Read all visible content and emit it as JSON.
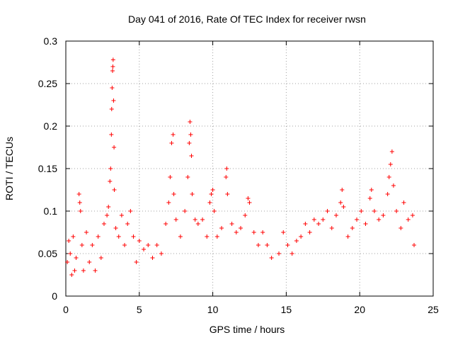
{
  "chart_data": {
    "type": "scatter",
    "title": "Day 041 of 2016, Rate Of TEC Index for receiver rwsn",
    "xlabel": "GPS time / hours",
    "ylabel": "ROTI / TECUs",
    "xlim": [
      0,
      25
    ],
    "ylim": [
      0,
      0.3
    ],
    "xticks": [
      0,
      5,
      10,
      15,
      20,
      25
    ],
    "xtick_labels": [
      "0",
      "5",
      "10",
      "15",
      "20",
      "25"
    ],
    "yticks": [
      0,
      0.05,
      0.1,
      0.15,
      0.2,
      0.25,
      0.3
    ],
    "ytick_labels": [
      "0",
      "0.05",
      "0.1",
      "0.15",
      "0.2",
      "0.25",
      "0.3"
    ],
    "grid": true,
    "marker": "+",
    "series_color": "#ff0000",
    "series": [
      {
        "name": "ROTI",
        "points": [
          [
            0.1,
            0.04
          ],
          [
            0.2,
            0.065
          ],
          [
            0.3,
            0.05
          ],
          [
            0.4,
            0.025
          ],
          [
            0.5,
            0.07
          ],
          [
            0.6,
            0.03
          ],
          [
            0.7,
            0.045
          ],
          [
            0.9,
            0.12
          ],
          [
            0.95,
            0.11
          ],
          [
            1.0,
            0.1
          ],
          [
            1.1,
            0.06
          ],
          [
            1.2,
            0.03
          ],
          [
            1.4,
            0.075
          ],
          [
            1.6,
            0.04
          ],
          [
            1.8,
            0.06
          ],
          [
            2.0,
            0.03
          ],
          [
            2.2,
            0.07
          ],
          [
            2.4,
            0.045
          ],
          [
            2.6,
            0.085
          ],
          [
            2.8,
            0.095
          ],
          [
            2.9,
            0.105
          ],
          [
            3.0,
            0.135
          ],
          [
            3.05,
            0.15
          ],
          [
            3.1,
            0.19
          ],
          [
            3.12,
            0.22
          ],
          [
            3.15,
            0.245
          ],
          [
            3.18,
            0.265
          ],
          [
            3.2,
            0.27
          ],
          [
            3.22,
            0.278
          ],
          [
            3.25,
            0.23
          ],
          [
            3.28,
            0.175
          ],
          [
            3.3,
            0.125
          ],
          [
            3.4,
            0.08
          ],
          [
            3.6,
            0.07
          ],
          [
            3.8,
            0.095
          ],
          [
            4.0,
            0.06
          ],
          [
            4.2,
            0.085
          ],
          [
            4.4,
            0.1
          ],
          [
            4.6,
            0.07
          ],
          [
            4.8,
            0.04
          ],
          [
            5.0,
            0.065
          ],
          [
            5.3,
            0.055
          ],
          [
            5.6,
            0.06
          ],
          [
            5.9,
            0.045
          ],
          [
            6.2,
            0.06
          ],
          [
            6.5,
            0.05
          ],
          [
            6.8,
            0.085
          ],
          [
            7.0,
            0.11
          ],
          [
            7.1,
            0.14
          ],
          [
            7.2,
            0.18
          ],
          [
            7.3,
            0.19
          ],
          [
            7.35,
            0.12
          ],
          [
            7.5,
            0.09
          ],
          [
            7.8,
            0.07
          ],
          [
            8.1,
            0.1
          ],
          [
            8.3,
            0.14
          ],
          [
            8.4,
            0.18
          ],
          [
            8.45,
            0.205
          ],
          [
            8.5,
            0.19
          ],
          [
            8.55,
            0.165
          ],
          [
            8.6,
            0.12
          ],
          [
            8.8,
            0.09
          ],
          [
            9.0,
            0.085
          ],
          [
            9.3,
            0.09
          ],
          [
            9.6,
            0.07
          ],
          [
            9.8,
            0.11
          ],
          [
            9.9,
            0.12
          ],
          [
            10.0,
            0.125
          ],
          [
            10.1,
            0.1
          ],
          [
            10.3,
            0.07
          ],
          [
            10.6,
            0.08
          ],
          [
            10.9,
            0.14
          ],
          [
            10.95,
            0.15
          ],
          [
            11.0,
            0.12
          ],
          [
            11.3,
            0.085
          ],
          [
            11.6,
            0.075
          ],
          [
            11.9,
            0.08
          ],
          [
            12.2,
            0.095
          ],
          [
            12.4,
            0.115
          ],
          [
            12.5,
            0.11
          ],
          [
            12.8,
            0.075
          ],
          [
            13.1,
            0.06
          ],
          [
            13.4,
            0.075
          ],
          [
            13.7,
            0.06
          ],
          [
            14.0,
            0.045
          ],
          [
            14.5,
            0.05
          ],
          [
            14.8,
            0.075
          ],
          [
            15.1,
            0.06
          ],
          [
            15.4,
            0.05
          ],
          [
            15.7,
            0.065
          ],
          [
            16.0,
            0.07
          ],
          [
            16.3,
            0.085
          ],
          [
            16.6,
            0.075
          ],
          [
            16.9,
            0.09
          ],
          [
            17.2,
            0.085
          ],
          [
            17.5,
            0.09
          ],
          [
            17.8,
            0.1
          ],
          [
            18.1,
            0.08
          ],
          [
            18.4,
            0.095
          ],
          [
            18.7,
            0.11
          ],
          [
            18.8,
            0.125
          ],
          [
            18.9,
            0.105
          ],
          [
            19.2,
            0.07
          ],
          [
            19.5,
            0.08
          ],
          [
            19.8,
            0.09
          ],
          [
            20.1,
            0.1
          ],
          [
            20.4,
            0.085
          ],
          [
            20.7,
            0.115
          ],
          [
            20.8,
            0.125
          ],
          [
            21.0,
            0.1
          ],
          [
            21.3,
            0.09
          ],
          [
            21.6,
            0.095
          ],
          [
            21.9,
            0.12
          ],
          [
            22.0,
            0.14
          ],
          [
            22.1,
            0.155
          ],
          [
            22.2,
            0.17
          ],
          [
            22.3,
            0.13
          ],
          [
            22.5,
            0.1
          ],
          [
            22.8,
            0.08
          ],
          [
            23.0,
            0.11
          ],
          [
            23.3,
            0.09
          ],
          [
            23.6,
            0.095
          ],
          [
            23.7,
            0.06
          ]
        ]
      }
    ]
  }
}
